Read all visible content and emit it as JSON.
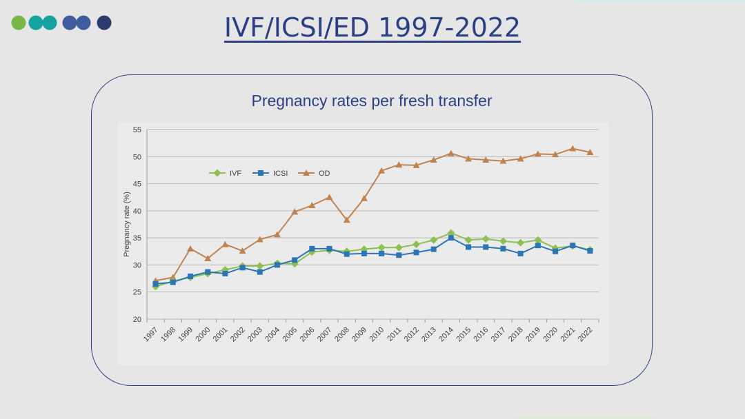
{
  "slide": {
    "title": "IVF/ICSI/ED 1997-2022",
    "dot_colors": [
      "#7ab648",
      "#16a2a0",
      "#3e5c9e",
      "#2d3a6e"
    ]
  },
  "chart_data": {
    "type": "line",
    "title": "Pregnancy rates per fresh transfer",
    "ylabel": "Pregnancy rate (%)",
    "xlabel": "",
    "ylim": [
      20,
      55
    ],
    "yticks": [
      20,
      25,
      30,
      35,
      40,
      45,
      50,
      55
    ],
    "grid": true,
    "legend_position": "top-left",
    "categories": [
      "1997",
      "1998",
      "1999",
      "2000",
      "2001",
      "2002",
      "2003",
      "2004",
      "2005",
      "2006",
      "2007",
      "2008",
      "2009",
      "2010",
      "2011",
      "2012",
      "2013",
      "2014",
      "2015",
      "2016",
      "2017",
      "2018",
      "2019",
      "2020",
      "2021",
      "2022"
    ],
    "series": [
      {
        "name": "IVF",
        "color": "#8cc152",
        "marker": "diamond",
        "values": [
          26.0,
          27.0,
          27.7,
          28.4,
          29.1,
          29.8,
          29.8,
          30.3,
          30.2,
          32.4,
          32.7,
          32.5,
          32.9,
          33.2,
          33.2,
          33.8,
          34.6,
          35.9,
          34.6,
          34.8,
          34.4,
          34.1,
          34.6,
          33.1,
          33.5,
          32.8
        ]
      },
      {
        "name": "ICSI",
        "color": "#2e75b6",
        "marker": "square",
        "values": [
          26.5,
          26.8,
          27.9,
          28.7,
          28.4,
          29.5,
          28.7,
          30.0,
          30.9,
          33.0,
          33.0,
          32.0,
          32.1,
          32.1,
          31.8,
          32.3,
          32.9,
          35.0,
          33.3,
          33.3,
          33.0,
          32.1,
          33.6,
          32.5,
          33.6,
          32.6
        ]
      },
      {
        "name": "OD",
        "color": "#c0834f",
        "marker": "triangle",
        "values": [
          27.1,
          27.7,
          33.0,
          31.2,
          33.8,
          32.6,
          34.7,
          35.6,
          39.8,
          41.0,
          42.5,
          38.3,
          42.3,
          47.4,
          48.5,
          48.4,
          49.4,
          50.6,
          49.6,
          49.4,
          49.2,
          49.6,
          50.5,
          50.4,
          51.5,
          50.8
        ]
      }
    ]
  }
}
